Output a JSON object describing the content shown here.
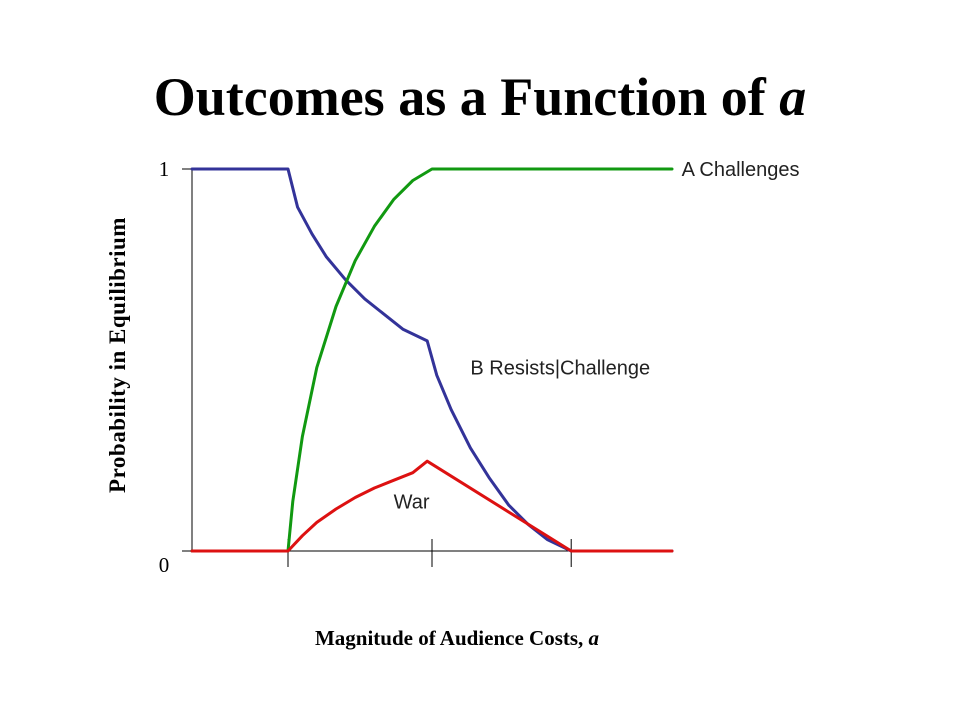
{
  "chart_data": {
    "type": "line",
    "title": {
      "text": "Outcomes as a Function of ",
      "variable": "a"
    },
    "xlabel": {
      "text": "Magnitude of Audience Costs, ",
      "variable": "a"
    },
    "ylabel": "Probability in Equilibrium",
    "xlim": [
      0,
      100
    ],
    "ylim": [
      0,
      1
    ],
    "y_ticks": [
      {
        "value": 0,
        "label": "0"
      },
      {
        "value": 1,
        "label": "1"
      }
    ],
    "x_ticks": [
      20,
      50,
      79
    ],
    "grid": false,
    "legend": "none",
    "series": [
      {
        "name": "B Resists|Challenge",
        "color": "#333399",
        "x": [
          0,
          20,
          22,
          25,
          28,
          32,
          36,
          40,
          44,
          49,
          51,
          54,
          58,
          62,
          66,
          70,
          74,
          79,
          100
        ],
        "y": [
          1,
          1,
          0.9,
          0.83,
          0.77,
          0.71,
          0.66,
          0.62,
          0.58,
          0.55,
          0.46,
          0.37,
          0.27,
          0.19,
          0.12,
          0.07,
          0.03,
          0,
          0
        ]
      },
      {
        "name": "A Challenges",
        "color": "#119911",
        "x": [
          0,
          20,
          21,
          23,
          26,
          30,
          34,
          38,
          42,
          46,
          50,
          100
        ],
        "y": [
          0,
          0,
          0.13,
          0.3,
          0.48,
          0.64,
          0.76,
          0.85,
          0.92,
          0.97,
          1,
          1
        ]
      },
      {
        "name": "War",
        "color": "#dd1111",
        "x": [
          0,
          20,
          23,
          26,
          30,
          34,
          38,
          42,
          46,
          49,
          79,
          100
        ],
        "y": [
          0,
          0,
          0.04,
          0.075,
          0.11,
          0.14,
          0.165,
          0.185,
          0.205,
          0.235,
          0,
          0
        ]
      }
    ],
    "annotations": [
      {
        "series": "A Challenges",
        "text": "A Challenges",
        "x": 102,
        "y": 1
      },
      {
        "series": "B Resists|Challenge",
        "text": "B Resists|Challenge",
        "x": 58,
        "y": 0.48
      },
      {
        "series": "War",
        "text": "War",
        "x": 42,
        "y": 0.13
      }
    ]
  }
}
